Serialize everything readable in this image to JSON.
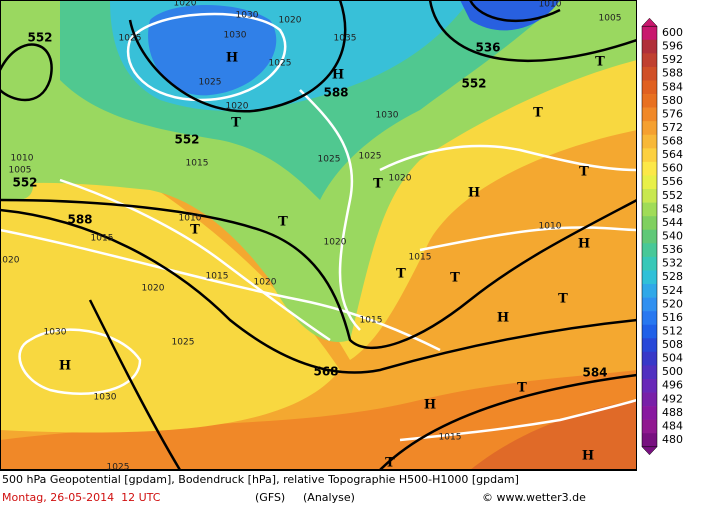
{
  "map": {
    "labels": [
      "552",
      "1020",
      "1030",
      "1020",
      "1030",
      "1025",
      "1035",
      "H",
      "H",
      "1025",
      "1025",
      "588",
      "552",
      "536",
      "1010",
      "1005",
      "T",
      "1020",
      "T",
      "1030",
      "T",
      "552",
      "1010",
      "1005",
      "552",
      "1015",
      "1025",
      "1025",
      "1020",
      "T",
      "H",
      "T",
      "588",
      "1010",
      "T",
      "T",
      "1010",
      "H",
      "1015",
      "1020",
      "1020",
      "1015",
      "T",
      "T",
      "1015",
      "1020",
      "1020",
      "T",
      "1015",
      "H",
      "1030",
      "1025",
      "H",
      "568",
      "584",
      "1030",
      "T",
      "H",
      "1015",
      "1025",
      "T",
      "H"
    ]
  },
  "colorbar": {
    "values": [
      600,
      596,
      592,
      588,
      584,
      580,
      576,
      572,
      568,
      564,
      560,
      556,
      552,
      548,
      544,
      540,
      536,
      532,
      528,
      524,
      520,
      516,
      512,
      508,
      504,
      500,
      496,
      492,
      488,
      484,
      480
    ],
    "colors": [
      "#c8186e",
      "#b0303a",
      "#c04030",
      "#d05028",
      "#e06020",
      "#e87020",
      "#f08828",
      "#f5a030",
      "#f8b838",
      "#fcd040",
      "#fce848",
      "#e8f048",
      "#c8e850",
      "#a0dc58",
      "#80d060",
      "#60c878",
      "#48c898",
      "#38c8b8",
      "#30c0d8",
      "#30a8e8",
      "#3090f0",
      "#2878f0",
      "#2060e8",
      "#2848d8",
      "#3838c8",
      "#5030c0",
      "#6828b8",
      "#7820a8",
      "#8818a0",
      "#901890",
      "#781080"
    ]
  },
  "footer": {
    "caption": "500 hPa Geopotential [gpdam], Bodendruck [hPa], relative Topographie H500-H1000 [gpdam]",
    "date": "Montag, 26-05-2014  12 UTC",
    "model": "(GFS)",
    "run": "(Analyse)",
    "credit": "© www.wetter3.de"
  }
}
